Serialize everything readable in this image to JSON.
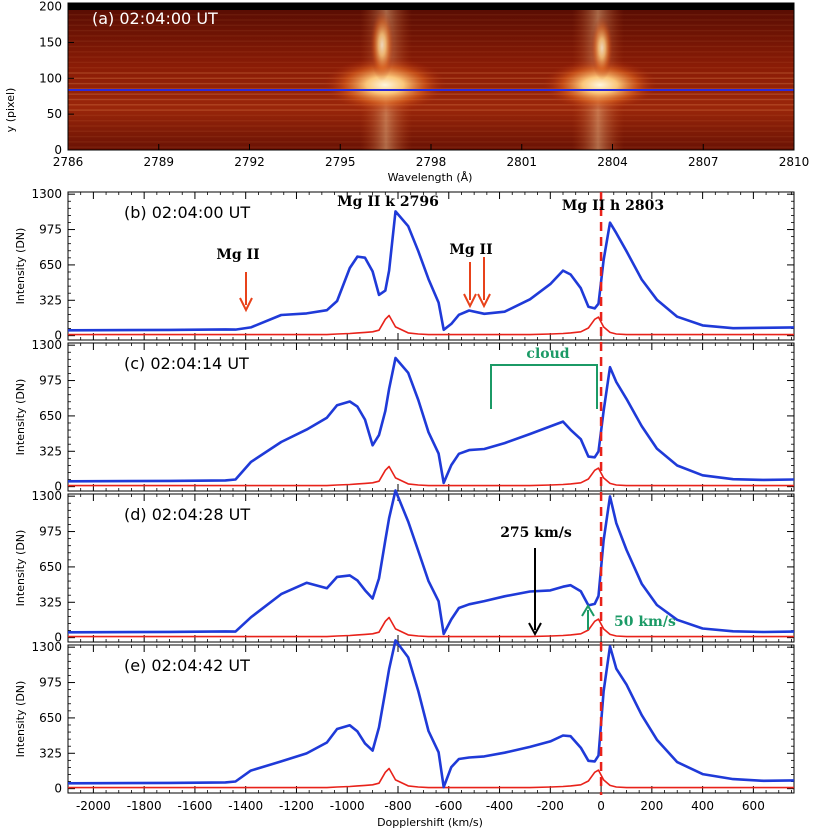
{
  "colors": {
    "observed": "#1f3ad8",
    "reference": "#e8221a",
    "annotation_green": "#1b9a66",
    "arrow_red": "#e8421a",
    "dashed_line": "#e8221a",
    "spectrum_dark": "#6e1204",
    "spectrum_hot": "#fff3d0"
  },
  "top_panel": {
    "label": "(a) 02:04:00 UT",
    "xlabel": "Wavelength (Å)",
    "ylabel": "y (pixel)",
    "xticks": [
      "2786",
      "2789",
      "2792",
      "2795",
      "2798",
      "2801",
      "2804",
      "2807",
      "2810"
    ],
    "yticks": [
      "0",
      "50",
      "100",
      "150",
      "200"
    ]
  },
  "shared_axis": {
    "xlabel": "Dopplershift (km/s)",
    "ylabel": "Intensity (DN)",
    "xticks": [
      "-2000",
      "-1800",
      "-1600",
      "-1400",
      "-1200",
      "-1000",
      "-800",
      "-600",
      "-400",
      "-200",
      "0",
      "200",
      "400",
      "600"
    ],
    "yticks": [
      "0",
      "325",
      "650",
      "975",
      "1300"
    ]
  },
  "annotations": {
    "mg_k": "Mg II k 2796",
    "mg_h": "Mg II h 2803",
    "mg_ii_left": "Mg II",
    "mg_ii_mid": "Mg II",
    "cloud": "cloud",
    "speed_black": "275 km/s",
    "speed_green": "50 km/s"
  },
  "chart_data": [
    {
      "type": "heatmap",
      "title": "(a) 02:04:00 UT",
      "xlabel": "Wavelength (Å)",
      "ylabel": "y (pixel)",
      "xlim": [
        2786,
        2810
      ],
      "ylim": [
        0,
        205
      ],
      "slit_row_y": 80,
      "emission_centers_A": [
        2796,
        2803
      ]
    },
    {
      "type": "line",
      "panel": "b",
      "title": "(b) 02:04:00 UT",
      "xlabel": "Dopplershift (km/s)",
      "ylabel": "Intensity (DN)",
      "xlim": [
        -2100,
        760
      ],
      "ylim": [
        -40,
        1320
      ],
      "x": [
        -2100,
        -1700,
        -1480,
        -1440,
        -1380,
        -1260,
        -1160,
        -1080,
        -1040,
        -990,
        -960,
        -930,
        -900,
        -875,
        -850,
        -835,
        -810,
        -760,
        -720,
        -680,
        -640,
        -620,
        -590,
        -560,
        -520,
        -460,
        -380,
        -280,
        -200,
        -150,
        -120,
        -80,
        -50,
        -25,
        -10,
        10,
        35,
        60,
        100,
        160,
        220,
        300,
        400,
        520,
        640,
        760
      ],
      "series": [
        {
          "values": [
            55,
            55,
            55,
            50,
            80,
            190,
            200,
            240,
            320,
            620,
            720,
            720,
            590,
            370,
            420,
            600,
            1140,
            1000,
            780,
            520,
            300,
            60,
            110,
            190,
            225,
            205,
            220,
            330,
            480,
            600,
            560,
            430,
            270,
            250,
            290,
            700,
            1040,
            940,
            770,
            520,
            330,
            170,
            100,
            70,
            70,
            70
          ]
        },
        {
          "values": [
            10,
            10,
            10,
            10,
            10,
            10,
            10,
            10,
            15,
            20,
            25,
            30,
            35,
            50,
            150,
            185,
            80,
            25,
            15,
            10,
            10,
            10,
            10,
            10,
            10,
            10,
            10,
            10,
            15,
            20,
            25,
            35,
            70,
            150,
            170,
            80,
            30,
            15,
            10,
            10,
            10,
            10,
            10,
            10,
            10,
            10
          ]
        }
      ]
    },
    {
      "type": "line",
      "panel": "c",
      "title": "(c) 02:04:14 UT",
      "xlabel": "Dopplershift (km/s)",
      "ylabel": "Intensity (DN)",
      "xlim": [
        -2100,
        760
      ],
      "ylim": [
        -40,
        1320
      ],
      "x": [
        -2100,
        -1700,
        -1480,
        -1440,
        -1380,
        -1260,
        -1160,
        -1080,
        -1040,
        -990,
        -960,
        -930,
        -900,
        -875,
        -850,
        -835,
        -810,
        -760,
        -720,
        -680,
        -640,
        -620,
        -590,
        -560,
        -520,
        -460,
        -380,
        -280,
        -200,
        -150,
        -120,
        -80,
        -50,
        -25,
        -10,
        10,
        35,
        60,
        100,
        160,
        220,
        300,
        400,
        520,
        640,
        760
      ],
      "series": [
        {
          "values": [
            55,
            55,
            55,
            60,
            230,
            410,
            520,
            640,
            750,
            780,
            730,
            620,
            380,
            470,
            700,
            900,
            1180,
            1040,
            800,
            500,
            300,
            40,
            200,
            300,
            330,
            350,
            400,
            480,
            560,
            600,
            520,
            430,
            280,
            270,
            320,
            700,
            1100,
            960,
            800,
            560,
            350,
            190,
            110,
            70,
            60,
            60
          ]
        },
        {
          "values": [
            10,
            10,
            10,
            10,
            10,
            10,
            10,
            10,
            15,
            20,
            25,
            30,
            35,
            50,
            150,
            185,
            80,
            25,
            15,
            10,
            10,
            10,
            10,
            10,
            10,
            10,
            10,
            10,
            15,
            20,
            25,
            35,
            70,
            150,
            170,
            80,
            30,
            15,
            10,
            10,
            10,
            10,
            10,
            10,
            10,
            10
          ]
        }
      ]
    },
    {
      "type": "line",
      "panel": "d",
      "title": "(d) 02:04:28 UT",
      "xlabel": "Dopplershift (km/s)",
      "ylabel": "Intensity (DN)",
      "xlim": [
        -2100,
        760
      ],
      "ylim": [
        -40,
        1320
      ],
      "x": [
        -2100,
        -1700,
        -1480,
        -1440,
        -1380,
        -1260,
        -1160,
        -1080,
        -1040,
        -990,
        -960,
        -930,
        -900,
        -875,
        -850,
        -835,
        -810,
        -760,
        -720,
        -680,
        -640,
        -620,
        -590,
        -560,
        -520,
        -460,
        -380,
        -280,
        -200,
        -150,
        -120,
        -80,
        -50,
        -25,
        -10,
        10,
        35,
        60,
        100,
        160,
        220,
        300,
        400,
        520,
        640,
        760
      ],
      "series": [
        {
          "values": [
            55,
            55,
            55,
            50,
            190,
            400,
            500,
            460,
            560,
            570,
            520,
            440,
            360,
            540,
            900,
            1100,
            1350,
            1060,
            800,
            520,
            330,
            40,
            170,
            270,
            300,
            340,
            380,
            420,
            440,
            470,
            480,
            420,
            300,
            310,
            380,
            900,
            1300,
            1050,
            800,
            500,
            300,
            160,
            90,
            60,
            50,
            50
          ]
        },
        {
          "values": [
            10,
            10,
            10,
            10,
            10,
            10,
            10,
            10,
            15,
            20,
            25,
            30,
            35,
            50,
            150,
            185,
            80,
            25,
            15,
            10,
            10,
            10,
            10,
            10,
            10,
            10,
            10,
            10,
            15,
            20,
            25,
            35,
            70,
            150,
            170,
            80,
            30,
            15,
            10,
            10,
            10,
            10,
            10,
            10,
            10,
            10
          ]
        }
      ]
    },
    {
      "type": "line",
      "panel": "e",
      "title": "(e) 02:04:42 UT",
      "xlabel": "Dopplershift (km/s)",
      "ylabel": "Intensity (DN)",
      "xlim": [
        -2100,
        760
      ],
      "ylim": [
        -40,
        1320
      ],
      "x": [
        -2100,
        -1700,
        -1480,
        -1440,
        -1380,
        -1260,
        -1160,
        -1080,
        -1040,
        -990,
        -960,
        -930,
        -900,
        -875,
        -850,
        -835,
        -810,
        -760,
        -720,
        -680,
        -640,
        -620,
        -590,
        -560,
        -520,
        -460,
        -380,
        -280,
        -200,
        -150,
        -120,
        -80,
        -50,
        -25,
        -10,
        10,
        35,
        60,
        100,
        160,
        220,
        300,
        400,
        520,
        640,
        760
      ],
      "series": [
        {
          "values": [
            55,
            55,
            55,
            60,
            170,
            250,
            320,
            430,
            550,
            580,
            520,
            420,
            350,
            560,
            900,
            1100,
            1360,
            1200,
            900,
            530,
            330,
            20,
            200,
            270,
            280,
            300,
            330,
            380,
            440,
            490,
            480,
            370,
            260,
            250,
            300,
            900,
            1310,
            1100,
            950,
            680,
            450,
            240,
            140,
            90,
            70,
            70
          ]
        },
        {
          "values": [
            10,
            10,
            10,
            10,
            10,
            10,
            10,
            10,
            15,
            20,
            25,
            30,
            35,
            50,
            150,
            185,
            80,
            25,
            15,
            10,
            10,
            10,
            10,
            10,
            10,
            10,
            10,
            10,
            15,
            20,
            25,
            35,
            70,
            150,
            170,
            80,
            30,
            15,
            10,
            10,
            10,
            10,
            10,
            10,
            10,
            10
          ]
        }
      ]
    }
  ]
}
